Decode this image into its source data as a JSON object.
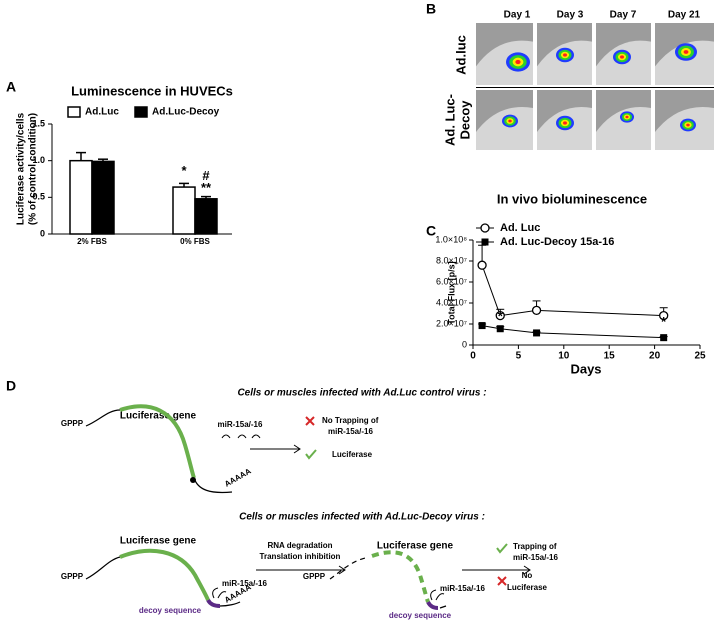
{
  "panel_labels": [
    "A",
    "B",
    "C",
    "D"
  ],
  "chart_data": [
    {
      "type": "bar",
      "title": "Luminescence in HUVECs",
      "y_label": [
        "Luciferase activity/cells",
        "(% of control condition)"
      ],
      "categories": [
        "2% FBS",
        "0% FBS"
      ],
      "series": [
        {
          "name": "Ad.Luc",
          "color": "#ffffff",
          "values": [
            1.0,
            0.64
          ],
          "errors": [
            0.11,
            0.05
          ]
        },
        {
          "name": "Ad.Luc-Decoy",
          "color": "#000000",
          "values": [
            0.99,
            0.48
          ],
          "errors": [
            0.03,
            0.03
          ]
        }
      ],
      "ylim": [
        0,
        1.5
      ],
      "yticks": [
        0,
        0.5,
        {
          "value": 1,
          "label": "1.0"
        },
        1.5
      ],
      "annotations": [
        "*",
        "#",
        "**"
      ],
      "legend": "top"
    },
    {
      "type": "line",
      "title": "In vivo bioluminescence",
      "x_label": "Days",
      "y_label": "Total Flux [p/s]",
      "x": [
        1,
        3,
        7,
        21
      ],
      "series": [
        {
          "name": "Ad. Luc",
          "color": "#000000",
          "marker": "open-circle",
          "values": [
            76000000,
            28000000,
            33000000,
            28000000
          ],
          "errors": [
            19000000,
            6000000,
            9000000,
            7500000
          ]
        },
        {
          "name": "Ad. Luc-Decoy 15a-16",
          "color": "#000000",
          "marker": "filled-square",
          "values": [
            18500000,
            15500000,
            11500000,
            7000000
          ],
          "errors": [
            1500000,
            2000000,
            1000000,
            1000000
          ]
        }
      ],
      "xlim": [
        0,
        25
      ],
      "xticks": [
        0,
        5,
        10,
        15,
        20,
        25
      ],
      "ylim": [
        0,
        100000000
      ],
      "yticks": [
        0,
        {
          "value": 20000000,
          "label": "2.0×10⁷"
        },
        {
          "value": 40000000,
          "label": "4.0×10⁷"
        },
        {
          "value": 60000000,
          "label": "6.0×10⁷"
        },
        {
          "value": 80000000,
          "label": "8.0×10⁷"
        },
        {
          "value": 100000000,
          "label": "1.0×10⁸"
        }
      ],
      "annotations": [
        "*",
        "*"
      ],
      "legend": "top-right"
    }
  ],
  "panel_b": {
    "columns": [
      "Day 1",
      "Day 3",
      "Day 7",
      "Day 21"
    ],
    "rows": [
      [
        "Ad.luc"
      ],
      [
        "Ad. Luc-",
        "Decoy"
      ]
    ]
  },
  "panel_d": {
    "top": {
      "title": "Cells or muscles infected with Ad.Luc control virus :",
      "gene": "Luciferase gene",
      "cap": "GPPP",
      "mirna": "miR-15a/-16",
      "polya": "AAAAA",
      "outcome_1": [
        "No Trapping of",
        "miR-15a/-16"
      ],
      "outcome_2": "Luciferase"
    },
    "bottom": {
      "title": "Cells or muscles infected with Ad.Luc-Decoy virus :",
      "gene": "Luciferase gene",
      "cap": "GPPP",
      "mirna": "miR-15a/-16",
      "polya": "AAAAA",
      "decoy": "decoy sequence",
      "process": [
        "RNA degradation",
        "Translation inhibition"
      ],
      "gene_2": "Luciferase gene",
      "cap_2": "GPPP",
      "mirna_2": "miR-15a/-16",
      "decoy_2": "decoy sequence",
      "outcome_1": [
        "Trapping of",
        "miR-15a/-16"
      ],
      "outcome_2": [
        "No",
        "Luciferase"
      ]
    }
  }
}
